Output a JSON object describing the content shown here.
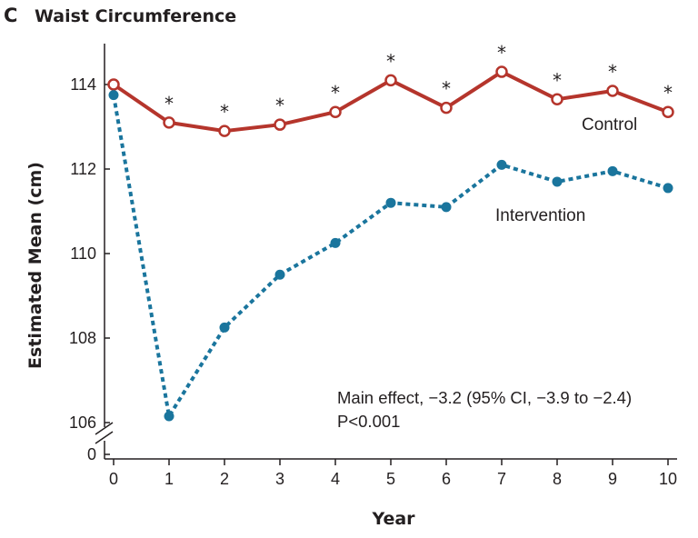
{
  "panel_letter": "C",
  "chart_data": {
    "type": "line",
    "title": "Waist Circumference",
    "xlabel": "Year",
    "ylabel": "Estimated Mean (cm)",
    "x": [
      0,
      1,
      2,
      3,
      4,
      5,
      6,
      7,
      8,
      9,
      10
    ],
    "xticks": [
      "0",
      "1",
      "2",
      "3",
      "4",
      "5",
      "6",
      "7",
      "8",
      "9",
      "10"
    ],
    "yticks": [
      {
        "value": 106,
        "label": "106"
      },
      {
        "value": 108,
        "label": "108"
      },
      {
        "value": 110,
        "label": "110"
      },
      {
        "value": 112,
        "label": "112"
      },
      {
        "value": 114,
        "label": "114"
      }
    ],
    "y_zero_label": "0",
    "ylim": [
      105.3,
      114.7
    ],
    "axis_break": true,
    "grid": false,
    "series": [
      {
        "name": "Control",
        "color": "#b5352c",
        "line_style": "solid",
        "marker": "open-circle",
        "values": [
          114.0,
          113.1,
          112.9,
          113.05,
          113.35,
          114.1,
          113.45,
          114.3,
          113.65,
          113.85,
          113.35
        ]
      },
      {
        "name": "Intervention",
        "color": "#1a759d",
        "line_style": "dotted",
        "marker": "filled-circle",
        "values": [
          113.75,
          106.15,
          108.25,
          109.5,
          110.25,
          111.2,
          111.1,
          112.1,
          111.7,
          111.95,
          111.55
        ]
      }
    ],
    "significance_marker": "*",
    "significant_at": [
      1,
      2,
      3,
      4,
      5,
      6,
      7,
      8,
      9,
      10
    ],
    "annotation_lines": [
      "Main effect, −3.2 (95% CI, −3.9 to −2.4)",
      "P<0.001"
    ]
  }
}
